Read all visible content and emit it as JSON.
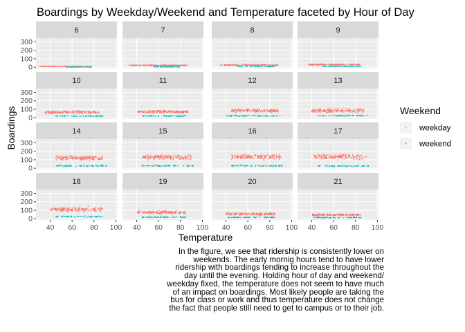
{
  "chart_data": {
    "type": "scatter",
    "title": "Boardings by Weekday/Weekend and Temperature faceted by Hour of Day",
    "xlabel": "Temperature",
    "ylabel": "Boardings",
    "xlim": [
      27,
      101
    ],
    "ylim": [
      -15,
      345
    ],
    "x_ticks": [
      40,
      60,
      80,
      100
    ],
    "y_ticks": [
      0,
      100,
      200,
      300
    ],
    "facet_rows": 4,
    "facet_cols": 4,
    "facets": [
      "6",
      "7",
      "8",
      "9",
      "10",
      "11",
      "12",
      "13",
      "14",
      "15",
      "16",
      "17",
      "18",
      "19",
      "20",
      "21"
    ],
    "legend_title": "Weekend",
    "legend_position": "right",
    "series": [
      {
        "name": "weekday",
        "color": "#F8766D"
      },
      {
        "name": "weekend",
        "color": "#00BFC4"
      }
    ],
    "panel_summary": [
      {
        "hour": "6",
        "weekday": {
          "x": [
            30,
            78
          ],
          "center": 8,
          "spread": 4
        },
        "weekend": {
          "x": [
            55,
            78
          ],
          "center": 3,
          "spread": 2
        }
      },
      {
        "hour": "7",
        "weekday": {
          "x": [
            33,
            86
          ],
          "center": 22,
          "spread": 8
        },
        "weekend": {
          "x": [
            55,
            80
          ],
          "center": 5,
          "spread": 3
        }
      },
      {
        "hour": "8",
        "weekday": {
          "x": [
            35,
            88
          ],
          "center": 25,
          "spread": 10
        },
        "weekend": {
          "x": [
            50,
            85
          ],
          "center": 8,
          "spread": 4
        }
      },
      {
        "hour": "9",
        "weekday": {
          "x": [
            37,
            85
          ],
          "center": 30,
          "spread": 12
        },
        "weekend": {
          "x": [
            50,
            85
          ],
          "center": 10,
          "spread": 5
        }
      },
      {
        "hour": "10",
        "weekday": {
          "x": [
            35,
            85
          ],
          "center": 65,
          "spread": 25
        },
        "weekend": {
          "x": [
            45,
            88
          ],
          "center": 20,
          "spread": 10
        }
      },
      {
        "hour": "11",
        "weekday": {
          "x": [
            40,
            88
          ],
          "center": 70,
          "spread": 25
        },
        "weekend": {
          "x": [
            45,
            88
          ],
          "center": 20,
          "spread": 10
        }
      },
      {
        "hour": "12",
        "weekday": {
          "x": [
            45,
            88
          ],
          "center": 85,
          "spread": 30
        },
        "weekend": {
          "x": [
            40,
            90
          ],
          "center": 22,
          "spread": 10
        }
      },
      {
        "hour": "13",
        "weekday": {
          "x": [
            40,
            88
          ],
          "center": 85,
          "spread": 35
        },
        "weekend": {
          "x": [
            45,
            92
          ],
          "center": 25,
          "spread": 10
        }
      },
      {
        "hour": "14",
        "weekday": {
          "x": [
            45,
            88
          ],
          "center": 120,
          "spread": 35
        },
        "weekend": {
          "x": [
            45,
            92
          ],
          "center": 28,
          "spread": 10
        }
      },
      {
        "hour": "15",
        "weekday": {
          "x": [
            45,
            90
          ],
          "center": 130,
          "spread": 40
        },
        "weekend": {
          "x": [
            45,
            92
          ],
          "center": 28,
          "spread": 10
        }
      },
      {
        "hour": "16",
        "weekday": {
          "x": [
            45,
            90
          ],
          "center": 135,
          "spread": 45
        },
        "weekend": {
          "x": [
            45,
            92
          ],
          "center": 28,
          "spread": 12
        }
      },
      {
        "hour": "17",
        "weekday": {
          "x": [
            42,
            90
          ],
          "center": 135,
          "spread": 45
        },
        "weekend": {
          "x": [
            45,
            92
          ],
          "center": 25,
          "spread": 10
        }
      },
      {
        "hour": "18",
        "weekday": {
          "x": [
            40,
            88
          ],
          "center": 110,
          "spread": 40
        },
        "weekend": {
          "x": [
            45,
            88
          ],
          "center": 25,
          "spread": 10
        }
      },
      {
        "hour": "19",
        "weekday": {
          "x": [
            40,
            85
          ],
          "center": 75,
          "spread": 28
        },
        "weekend": {
          "x": [
            45,
            85
          ],
          "center": 18,
          "spread": 8
        }
      },
      {
        "hour": "20",
        "weekday": {
          "x": [
            40,
            85
          ],
          "center": 55,
          "spread": 22
        },
        "weekend": {
          "x": [
            42,
            85
          ],
          "center": 15,
          "spread": 6
        }
      },
      {
        "hour": "21",
        "weekday": {
          "x": [
            40,
            85
          ],
          "center": 45,
          "spread": 18
        },
        "weekend": {
          "x": [
            42,
            85
          ],
          "center": 12,
          "spread": 6
        }
      }
    ]
  },
  "caption": "In the figure, we see that ridership is consistently lower on weekends. The early mornig hours tend to have lower ridership with boardings tending to increase throughout the day until the evening. Holding hour of day and weekend/ weekday fixed, the temperature does not seem to have much of an impact on boardings. Most likely people are taking the bus for class or work and thus temperature does not change the fact that people still need to get to campus or to their job."
}
